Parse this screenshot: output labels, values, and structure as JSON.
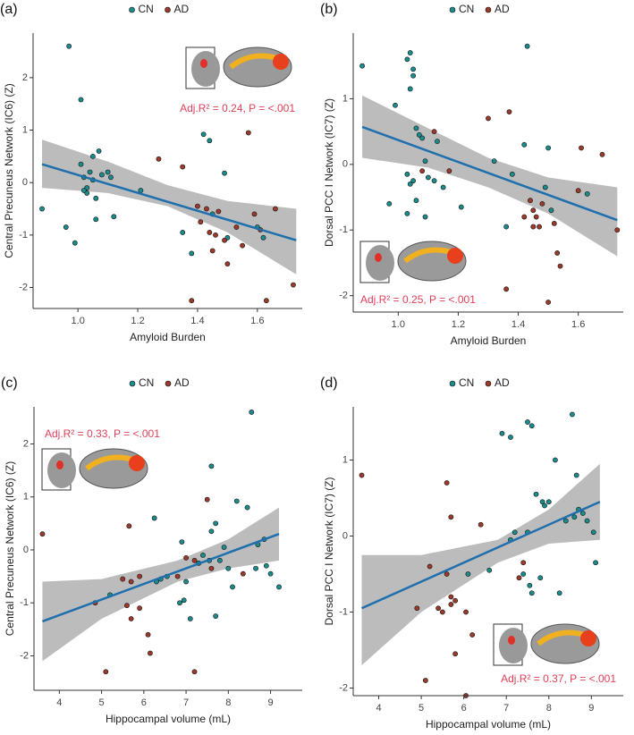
{
  "chart_data": [
    {
      "type": "scatter",
      "panel_label": "(a)",
      "x_label": "Amyloid Burden",
      "y_label": "Central Precuneus Network (IC6) (Z)",
      "annotation": "Adj.R² = 0.24, P = <.001",
      "legend": "top",
      "xlim": [
        0.85,
        1.75
      ],
      "ylim": [
        -2.4,
        2.85
      ],
      "xticks": [
        {
          "value": 1,
          "label": "1.0"
        },
        1.2,
        1.4,
        1.6
      ],
      "yticks": [
        -2,
        -1,
        0,
        1,
        2
      ],
      "series": [
        {
          "name": "CN",
          "color": "#1b8c8c",
          "x": [
            0.88,
            0.97,
            1.01,
            0.96,
            0.99,
            1.01,
            1.02,
            1.03,
            1.03,
            1.04,
            1.05,
            1.06,
            1.07,
            1.06,
            1.08,
            1.1,
            1.11,
            1.12,
            1.21,
            1.35,
            1.38,
            1.42,
            1.44,
            1.49,
            1.45,
            1.5,
            1.6,
            1.62,
            1.05,
            1.02
          ],
          "values": [
            -0.5,
            2.6,
            1.58,
            -0.85,
            -1.15,
            0.35,
            0.1,
            -0.1,
            -0.2,
            0.2,
            0.5,
            -0.3,
            0.6,
            -0.7,
            0.15,
            0.2,
            0.1,
            -0.65,
            -0.15,
            -0.95,
            -1.35,
            0.92,
            0.8,
            0.18,
            -0.6,
            -1.05,
            -0.85,
            -1.05,
            0.05,
            -0.15
          ]
        },
        {
          "name": "AD",
          "color": "#9b3a2b",
          "x": [
            1.27,
            1.35,
            1.38,
            1.4,
            1.43,
            1.44,
            1.46,
            1.45,
            1.47,
            1.49,
            1.5,
            1.53,
            1.55,
            1.57,
            1.59,
            1.61,
            1.63,
            1.66,
            1.72,
            1.41
          ],
          "values": [
            0.45,
            0.3,
            -2.25,
            -0.45,
            -0.5,
            -0.95,
            -1.0,
            -1.3,
            -0.55,
            -1.1,
            -1.55,
            -0.85,
            -1.2,
            0.95,
            -0.6,
            -0.9,
            -2.25,
            -0.5,
            -1.95,
            -0.75
          ]
        }
      ],
      "fit": {
        "color": "#1f6fad",
        "x": [
          0.88,
          1.73
        ],
        "values": [
          0.35,
          -1.1
        ]
      },
      "band": {
        "color": "#a6a6a6",
        "x": [
          0.88,
          1.1,
          1.3,
          1.5,
          1.73
        ],
        "lower": [
          -0.1,
          -0.2,
          -0.45,
          -0.95,
          -1.75
        ],
        "upper": [
          0.82,
          0.4,
          -0.05,
          -0.35,
          -0.5
        ]
      }
    },
    {
      "type": "scatter",
      "panel_label": "(b)",
      "x_label": "Amyloid Burden",
      "y_label": "Dorsal PCC I Network (IC7) (Z)",
      "annotation": "Adj.R² = 0.25, P = <.001",
      "legend": "top",
      "xlim": [
        0.85,
        1.75
      ],
      "ylim": [
        -2.25,
        2.0
      ],
      "xticks": [
        {
          "value": 1,
          "label": "1.0"
        },
        1.2,
        1.4,
        1.6
      ],
      "yticks": [
        -2,
        -1,
        0,
        1
      ],
      "series": [
        {
          "name": "CN",
          "color": "#1b8c8c",
          "x": [
            0.88,
            0.99,
            1.03,
            1.04,
            1.05,
            1.04,
            1.05,
            1.06,
            1.07,
            1.08,
            1.09,
            1.03,
            1.04,
            1.05,
            1.1,
            1.12,
            1.13,
            1.15,
            1.06,
            1.03,
            0.97,
            1.09,
            1.21,
            1.32,
            1.36,
            1.38,
            1.43,
            1.42,
            1.5,
            1.51,
            1.63,
            1.49
          ],
          "values": [
            1.5,
            0.9,
            1.6,
            1.7,
            1.45,
            1.15,
            1.35,
            0.55,
            0.45,
            0.4,
            0.05,
            -0.15,
            -0.3,
            -0.25,
            -0.2,
            -0.25,
            0.35,
            -0.35,
            -0.55,
            -0.75,
            -0.6,
            -0.8,
            -0.65,
            0.05,
            -0.95,
            -0.15,
            1.8,
            0.3,
            0.25,
            -0.7,
            -0.45,
            -0.35
          ]
        },
        {
          "name": "AD",
          "color": "#9b3a2b",
          "x": [
            1.12,
            1.08,
            1.17,
            1.3,
            1.37,
            1.36,
            1.44,
            1.45,
            1.46,
            1.47,
            1.45,
            1.42,
            1.5,
            1.52,
            1.53,
            1.54,
            1.6,
            1.61,
            1.68,
            1.73,
            1.48
          ],
          "values": [
            0.5,
            -0.1,
            -0.1,
            0.7,
            0.8,
            -1.9,
            -0.55,
            -0.7,
            -0.8,
            -0.95,
            -0.95,
            -0.8,
            -2.1,
            -0.9,
            -1.35,
            -1.55,
            -0.4,
            0.25,
            0.15,
            -1.0,
            -0.6
          ]
        }
      ],
      "fit": {
        "color": "#1f6fad",
        "x": [
          0.88,
          1.73
        ],
        "values": [
          0.57,
          -0.85
        ]
      },
      "band": {
        "color": "#a6a6a6",
        "x": [
          0.88,
          1.1,
          1.3,
          1.5,
          1.73
        ],
        "lower": [
          0.1,
          -0.05,
          -0.35,
          -0.75,
          -1.4
        ],
        "upper": [
          1.05,
          0.55,
          0.1,
          -0.2,
          -0.35
        ]
      }
    },
    {
      "type": "scatter",
      "panel_label": "(c)",
      "x_label": "Hippocampal volume (mL)",
      "y_label": "Central Precuneus Network (IC6) (Z)",
      "annotation": "Adj.R² = 0.33, P = <.001",
      "legend": "top",
      "xlim": [
        3.4,
        9.75
      ],
      "ylim": [
        -2.65,
        2.7
      ],
      "xticks": [
        4,
        5,
        6,
        7,
        8,
        9
      ],
      "yticks": [
        -2,
        -1,
        0,
        1,
        2
      ],
      "series": [
        {
          "name": "CN",
          "color": "#1b8c8c",
          "x": [
            8.55,
            7.6,
            8.2,
            8.45,
            6.25,
            7.7,
            7.6,
            6.9,
            8.85,
            8.7,
            7.9,
            7.4,
            7.8,
            7.55,
            7.3,
            8.0,
            8.65,
            8.9,
            9.2,
            9.0,
            7.0,
            6.55,
            6.3,
            5.2,
            6.95,
            7.7,
            7.1,
            6.85,
            8.1,
            6.4
          ],
          "values": [
            2.6,
            1.58,
            0.92,
            0.8,
            0.6,
            0.5,
            0.35,
            0.15,
            0.2,
            0.1,
            0.05,
            -0.1,
            -0.2,
            -0.2,
            -0.25,
            -0.35,
            -0.35,
            -0.3,
            -0.7,
            -0.45,
            -0.6,
            -0.5,
            -0.6,
            -0.85,
            -0.95,
            -1.25,
            -1.3,
            -1.0,
            -0.7,
            -0.55
          ]
        },
        {
          "name": "AD",
          "color": "#9b3a2b",
          "x": [
            3.6,
            5.65,
            7.5,
            7.6,
            7.2,
            7.0,
            6.8,
            5.9,
            5.5,
            5.7,
            5.6,
            5.7,
            4.85,
            5.9,
            6.1,
            6.15,
            5.1,
            7.2,
            8.35
          ],
          "values": [
            0.3,
            0.45,
            0.95,
            -0.35,
            -0.2,
            -0.15,
            -0.5,
            -0.5,
            -0.55,
            -0.6,
            -1.05,
            -1.3,
            -1.0,
            -1.1,
            -1.6,
            -1.95,
            -2.3,
            -2.3,
            -0.45
          ]
        }
      ],
      "fit": {
        "color": "#1f6fad",
        "x": [
          3.6,
          9.2
        ],
        "values": [
          -1.35,
          0.3
        ]
      },
      "band": {
        "color": "#a6a6a6",
        "x": [
          3.6,
          5.0,
          6.8,
          8.0,
          9.2
        ],
        "lower": [
          -2.1,
          -1.3,
          -0.6,
          -0.35,
          -0.2
        ],
        "upper": [
          -0.6,
          -0.55,
          -0.2,
          0.2,
          0.8
        ]
      }
    },
    {
      "type": "scatter",
      "panel_label": "(d)",
      "x_label": "Hippocampal volume (mL)",
      "y_label": "Dorsal PCC I Network (IC7) (Z)",
      "annotation": "Adj.R² = 0.37, P = <.001",
      "legend": "top",
      "xlim": [
        3.4,
        9.75
      ],
      "ylim": [
        -2.1,
        1.7
      ],
      "xticks": [
        4,
        5,
        6,
        7,
        8,
        9
      ],
      "yticks": [
        -2,
        -1,
        0,
        1
      ],
      "series": [
        {
          "name": "CN",
          "color": "#1b8c8c",
          "x": [
            8.55,
            7.5,
            7.6,
            6.9,
            7.1,
            8.15,
            8.65,
            7.7,
            8.0,
            7.85,
            7.9,
            8.7,
            8.8,
            8.9,
            9.05,
            8.4,
            8.6,
            7.2,
            7.5,
            7.1,
            7.4,
            7.8,
            7.55,
            7.6,
            8.25,
            9.1,
            6.1,
            6.6
          ],
          "values": [
            1.6,
            1.5,
            1.45,
            1.35,
            1.3,
            1.0,
            0.8,
            0.55,
            0.45,
            0.45,
            0.4,
            0.35,
            0.3,
            0.2,
            0.05,
            0.2,
            0.25,
            0.05,
            0.05,
            -0.05,
            -0.5,
            -0.55,
            -0.65,
            -0.75,
            -0.75,
            -0.35,
            -0.5,
            -0.45
          ]
        },
        {
          "name": "AD",
          "color": "#9b3a2b",
          "x": [
            3.6,
            5.6,
            5.7,
            6.4,
            5.2,
            5.6,
            5.7,
            5.8,
            5.7,
            4.9,
            5.4,
            5.5,
            6.05,
            5.8,
            6.2,
            5.1,
            6.05,
            7.3,
            7.4
          ],
          "values": [
            0.8,
            0.7,
            0.25,
            0.15,
            -0.4,
            -0.5,
            -0.8,
            -0.85,
            -0.9,
            -0.95,
            -0.95,
            -1.0,
            -1.0,
            -1.55,
            -1.3,
            -1.9,
            -2.1,
            -0.55,
            -0.35
          ]
        }
      ],
      "fit": {
        "color": "#1f6fad",
        "x": [
          3.6,
          9.2
        ],
        "values": [
          -0.95,
          0.45
        ]
      },
      "band": {
        "color": "#a6a6a6",
        "x": [
          3.6,
          5.0,
          6.8,
          8.0,
          9.2
        ],
        "lower": [
          -1.7,
          -1.0,
          -0.35,
          -0.1,
          -0.05
        ],
        "upper": [
          -0.25,
          -0.25,
          -0.05,
          0.35,
          0.95
        ]
      }
    }
  ]
}
